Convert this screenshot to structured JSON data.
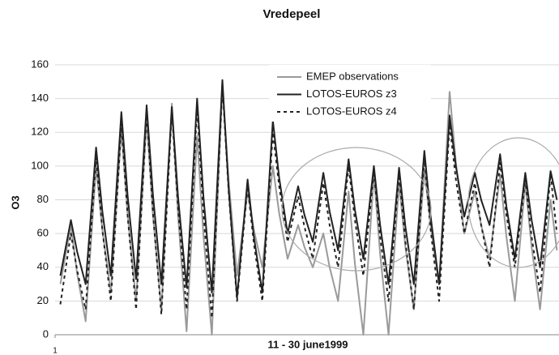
{
  "chart_data": {
    "type": "line",
    "title": "Vredepeel",
    "xlabel": "11  - 30 june1999",
    "ylabel": "O3",
    "x": [
      6,
      16,
      22,
      30,
      40,
      46,
      54,
      64,
      70,
      78,
      88,
      94,
      102,
      112,
      118,
      126,
      136,
      142,
      150,
      160,
      166,
      174,
      184,
      190,
      198,
      208,
      214,
      222,
      232,
      238,
      246,
      256,
      262,
      270,
      280,
      286,
      294,
      304,
      310,
      318,
      328,
      334,
      342,
      352,
      358,
      366,
      376,
      382,
      390,
      400,
      406,
      414,
      424,
      430,
      438,
      448,
      454,
      462,
      472,
      478
    ],
    "xlim": [
      1,
      480
    ],
    "xticks": [
      1
    ],
    "ylim": [
      0,
      160
    ],
    "yticks": [
      0,
      20,
      40,
      60,
      80,
      100,
      120,
      140,
      160
    ],
    "grid": true,
    "legend": "upper right",
    "series": [
      {
        "name": "EMEP observations",
        "color": "#9a9a9a",
        "style": "solid",
        "values": [
          30,
          65,
          36,
          8,
          100,
          62,
          25,
          122,
          71,
          20,
          128,
          71,
          15,
          137,
          70,
          2,
          118,
          59,
          0,
          148,
          91,
          35,
          85,
          62,
          40,
          100,
          72,
          45,
          65,
          52,
          40,
          60,
          40,
          20,
          85,
          42,
          0,
          95,
          48,
          0,
          90,
          52,
          15,
          98,
          64,
          30,
          144,
          102,
          60,
          85,
          65,
          45,
          95,
          58,
          20,
          90,
          52,
          15,
          80,
          50
        ]
      },
      {
        "name": "LOTOS-EUROS z3",
        "color": "#222222",
        "style": "solid",
        "values": [
          35,
          68,
          49,
          30,
          111,
          73,
          35,
          132,
          82,
          33,
          136,
          83,
          30,
          135,
          81,
          28,
          140,
          82,
          25,
          151,
          86,
          22,
          92,
          58,
          25,
          127,
          93,
          60,
          88,
          71,
          55,
          96,
          73,
          50,
          104,
          74,
          45,
          100,
          65,
          30,
          99,
          64,
          30,
          109,
          70,
          30,
          130,
          100,
          70,
          96,
          80,
          65,
          107,
          76,
          45,
          96,
          68,
          40,
          97,
          80
        ]
      },
      {
        "name": "LOTOS-EUROS z4",
        "color": "#222222",
        "style": "dashed",
        "values": [
          18,
          60,
          38,
          15,
          105,
          62,
          20,
          125,
          70,
          15,
          132,
          72,
          12,
          133,
          74,
          15,
          135,
          72,
          10,
          148,
          84,
          20,
          88,
          54,
          20,
          120,
          88,
          55,
          82,
          64,
          45,
          90,
          65,
          40,
          100,
          68,
          35,
          97,
          58,
          20,
          95,
          55,
          15,
          105,
          62,
          20,
          125,
          92,
          60,
          90,
          65,
          40,
          102,
          71,
          40,
          92,
          58,
          25,
          95,
          60
        ]
      }
    ]
  }
}
